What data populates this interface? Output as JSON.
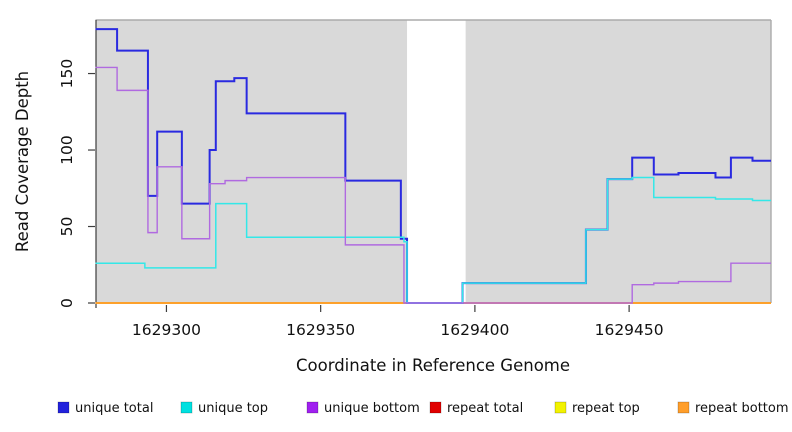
{
  "figure": {
    "xlabel": "Coordinate in Reference Genome",
    "ylabel": "Read Coverage Depth"
  },
  "legend": {
    "items": [
      {
        "label": "unique total",
        "color": "#2222dc"
      },
      {
        "label": "unique top",
        "color": "#00e0e0"
      },
      {
        "label": "unique bottom",
        "color": "#a020f0"
      },
      {
        "label": "repeat total",
        "color": "#e00000"
      },
      {
        "label": "repeat top",
        "color": "#f2f200"
      },
      {
        "label": "repeat bottom",
        "color": "#ff9e2a"
      }
    ]
  },
  "chart_data": {
    "type": "line",
    "title": "",
    "xlabel": "Coordinate in Reference Genome",
    "ylabel": "Read Coverage Depth",
    "xlim": [
      1629277,
      1629496
    ],
    "ylim": [
      0,
      185
    ],
    "xticks": [
      1629300,
      1629350,
      1629400,
      1629450
    ],
    "yticks": [
      0,
      50,
      100,
      150
    ],
    "grid": false,
    "legend_position": "bottom",
    "panel_background": "#d9d9d9",
    "gap": {
      "x_start": 1629378,
      "x_end": 1629397,
      "note": "white no-coverage region"
    },
    "series": [
      {
        "name": "unique total",
        "color": "#2a2ae0",
        "width": 2.0,
        "z": 4,
        "points": [
          [
            1629277,
            179
          ],
          [
            1629284,
            165
          ],
          [
            1629294,
            70
          ],
          [
            1629297,
            112
          ],
          [
            1629305,
            65
          ],
          [
            1629314,
            100
          ],
          [
            1629316,
            145
          ],
          [
            1629322,
            147
          ],
          [
            1629326,
            124
          ],
          [
            1629358,
            80
          ],
          [
            1629376,
            42
          ],
          [
            1629378,
            0
          ],
          [
            1629396,
            13
          ],
          [
            1629436,
            48
          ],
          [
            1629443,
            81
          ],
          [
            1629451,
            95
          ],
          [
            1629458,
            84
          ],
          [
            1629466,
            85
          ],
          [
            1629478,
            82
          ],
          [
            1629483,
            95
          ],
          [
            1629490,
            93
          ],
          [
            1629496,
            93
          ]
        ]
      },
      {
        "name": "unique top",
        "color": "#33e8e8",
        "width": 1.5,
        "z": 5,
        "points": [
          [
            1629277,
            26
          ],
          [
            1629293,
            23
          ],
          [
            1629316,
            65
          ],
          [
            1629326,
            43
          ],
          [
            1629377,
            40
          ],
          [
            1629378,
            0
          ],
          [
            1629396,
            13
          ],
          [
            1629436,
            48
          ],
          [
            1629443,
            81
          ],
          [
            1629451,
            82
          ],
          [
            1629458,
            69
          ],
          [
            1629478,
            68
          ],
          [
            1629490,
            67
          ],
          [
            1629496,
            67
          ]
        ]
      },
      {
        "name": "unique bottom",
        "color": "#b06ae0",
        "width": 1.4,
        "z": 6,
        "points": [
          [
            1629277,
            154
          ],
          [
            1629284,
            139
          ],
          [
            1629294,
            46
          ],
          [
            1629297,
            89
          ],
          [
            1629305,
            42
          ],
          [
            1629314,
            78
          ],
          [
            1629319,
            80
          ],
          [
            1629326,
            82
          ],
          [
            1629358,
            38
          ],
          [
            1629377,
            0
          ],
          [
            1629451,
            12
          ],
          [
            1629458,
            13
          ],
          [
            1629466,
            14
          ],
          [
            1629483,
            26
          ],
          [
            1629496,
            26
          ]
        ]
      },
      {
        "name": "repeat total",
        "color": "#e00000",
        "width": 1.5,
        "z": 1,
        "points": [
          [
            1629277,
            0
          ],
          [
            1629496,
            0
          ]
        ]
      },
      {
        "name": "repeat top",
        "color": "#f2f200",
        "width": 1.5,
        "z": 2,
        "points": [
          [
            1629277,
            0
          ],
          [
            1629496,
            0
          ]
        ]
      },
      {
        "name": "repeat bottom",
        "color": "#ff9e2a",
        "width": 1.8,
        "z": 3,
        "points": [
          [
            1629277,
            0
          ],
          [
            1629496,
            0
          ]
        ]
      }
    ]
  }
}
